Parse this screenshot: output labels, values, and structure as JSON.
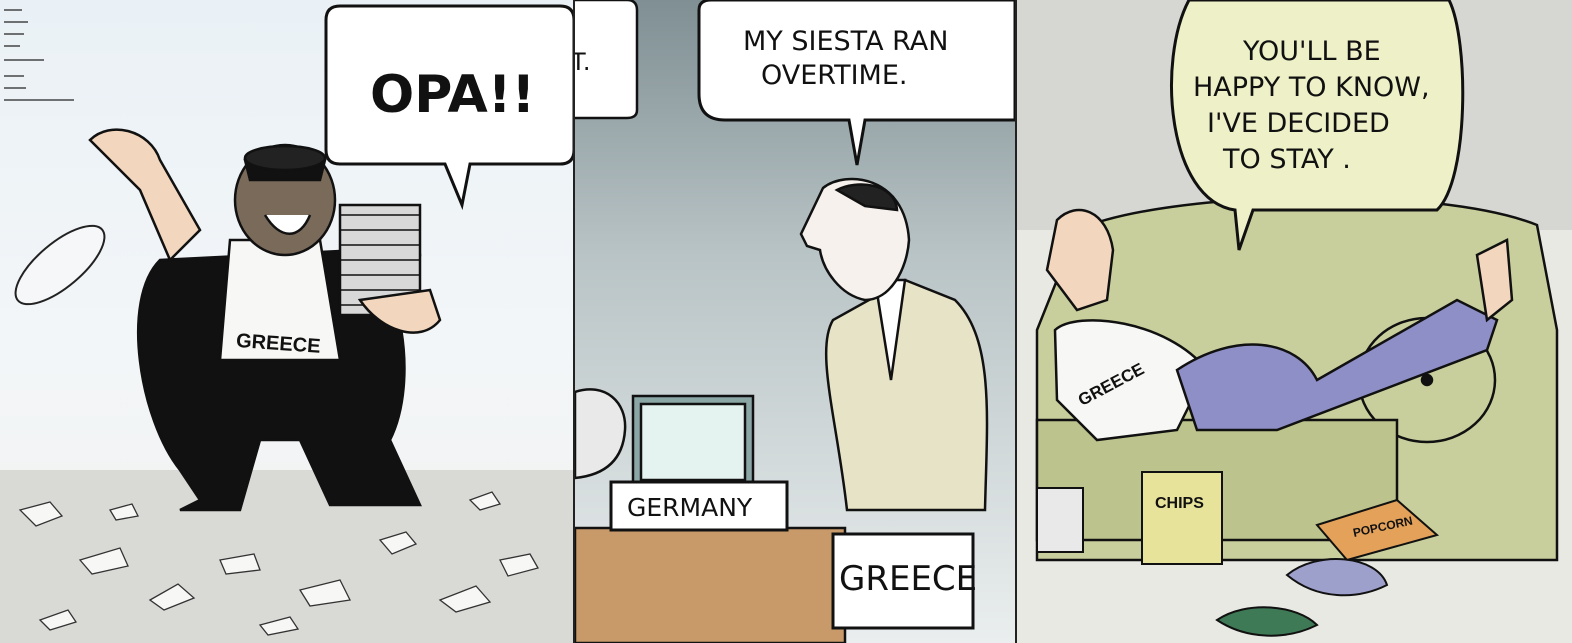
{
  "panels": [
    {
      "bubble": "OPA!!",
      "label": "GREECE",
      "partial_bubble": "T."
    },
    {
      "bubble_line1": "MY SIESTA RAN",
      "bubble_line2": "OVERTIME.",
      "sign_left": "GERMANY",
      "sign_right": "GREECE"
    },
    {
      "bubble_line1": "YOU'LL BE",
      "bubble_line2": "HAPPY TO KNOW,",
      "bubble_line3": "I'VE DECIDED",
      "bubble_line4": "TO STAY .",
      "shirt": "GREECE",
      "bag": "CHIPS",
      "popcorn": "POPCORN"
    }
  ],
  "colors": {
    "ink": "#111111",
    "sofa": "#c9cf9c",
    "bubble_fill": "#eef0c8",
    "desk": "#c89a6a"
  }
}
